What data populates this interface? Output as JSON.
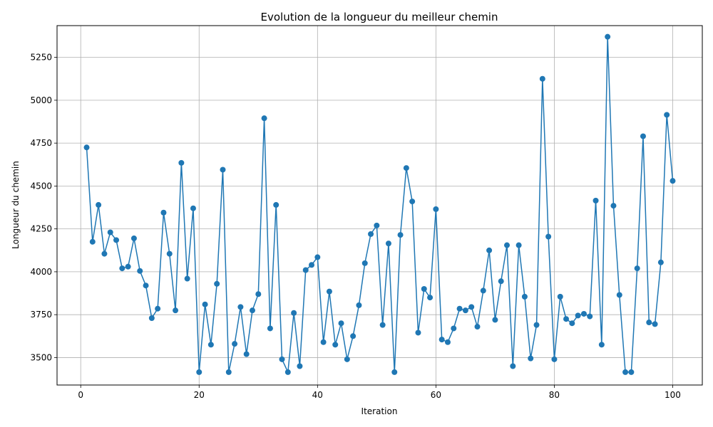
{
  "chart_data": {
    "type": "line",
    "title": "Evolution de la longueur du meilleur chemin",
    "xlabel": "Iteration",
    "ylabel": "Longueur du chemin",
    "xlim": [
      -4,
      105
    ],
    "ylim": [
      3340,
      5435
    ],
    "xticks": [
      0,
      20,
      40,
      60,
      80,
      100
    ],
    "yticks": [
      3500,
      3750,
      4000,
      4250,
      4500,
      4750,
      5000,
      5250
    ],
    "grid": true,
    "color": "#1f77b4",
    "marker": "circle",
    "x": [
      1,
      2,
      3,
      4,
      5,
      6,
      7,
      8,
      9,
      10,
      11,
      12,
      13,
      14,
      15,
      16,
      17,
      18,
      19,
      20,
      21,
      22,
      23,
      24,
      25,
      26,
      27,
      28,
      29,
      30,
      31,
      32,
      33,
      34,
      35,
      36,
      37,
      38,
      39,
      40,
      41,
      42,
      43,
      44,
      45,
      46,
      47,
      48,
      49,
      50,
      51,
      52,
      53,
      54,
      55,
      56,
      57,
      58,
      59,
      60,
      61,
      62,
      63,
      64,
      65,
      66,
      67,
      68,
      69,
      70,
      71,
      72,
      73,
      74,
      75,
      76,
      77,
      78,
      79,
      80,
      81,
      82,
      83,
      84,
      85,
      86,
      87,
      88,
      89,
      90,
      91,
      92,
      93,
      94,
      95,
      96,
      97,
      98,
      99,
      100
    ],
    "y": [
      4725,
      4175,
      4390,
      4105,
      4230,
      4185,
      4020,
      4030,
      4195,
      4005,
      3920,
      3730,
      3785,
      4345,
      4105,
      3775,
      4635,
      3960,
      4370,
      3415,
      3810,
      3575,
      3930,
      4595,
      3415,
      3580,
      3795,
      3520,
      3775,
      3870,
      4895,
      3670,
      4390,
      3490,
      3415,
      3760,
      3450,
      4010,
      4040,
      4085,
      3590,
      3885,
      3575,
      3700,
      3490,
      3625,
      3805,
      4050,
      4220,
      4270,
      3690,
      4165,
      3415,
      4215,
      4605,
      4410,
      3645,
      3900,
      3850,
      4365,
      3605,
      3590,
      3670,
      3785,
      3775,
      3795,
      3680,
      3890,
      4125,
      3720,
      3945,
      4155,
      3450,
      4155,
      3855,
      3495,
      3690,
      5125,
      4205,
      3490,
      3855,
      3725,
      3700,
      3745,
      3755,
      3740,
      4415,
      3575,
      5370,
      4385,
      3865,
      3415,
      3415,
      4020,
      4790,
      3705,
      3695,
      4055,
      4915,
      4530
    ]
  }
}
